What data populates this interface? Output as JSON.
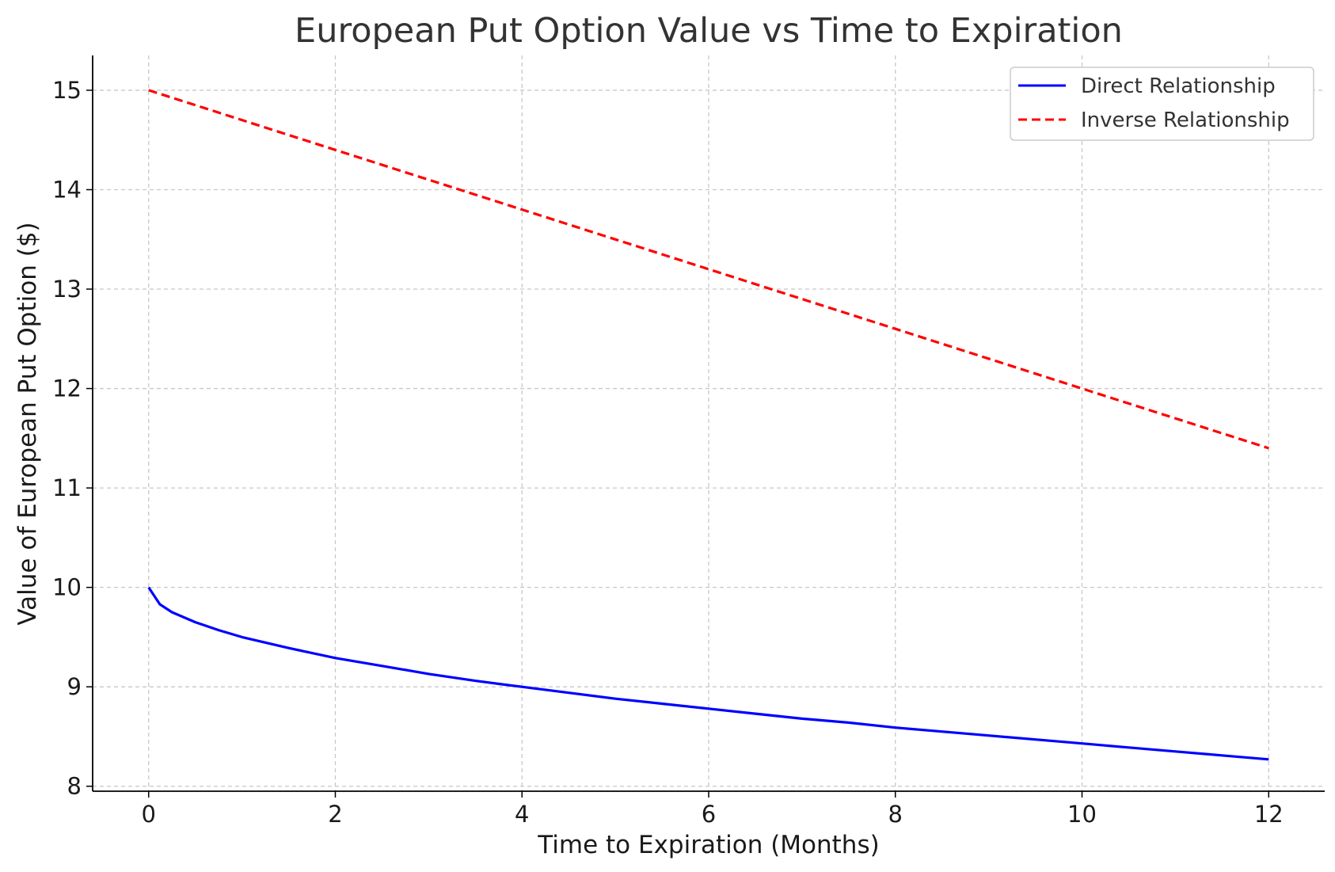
{
  "chart_data": {
    "type": "line",
    "title": "European Put Option Value vs Time to Expiration",
    "xlabel": "Time to Expiration (Months)",
    "ylabel": "Value of European Put Option ($)",
    "xlim": [
      -0.6,
      12.6
    ],
    "ylim": [
      7.95,
      15.35
    ],
    "xticks": [
      0,
      2,
      4,
      6,
      8,
      10,
      12
    ],
    "yticks": [
      8,
      9,
      10,
      11,
      12,
      13,
      14,
      15
    ],
    "grid": true,
    "legend_position": "top-right",
    "series": [
      {
        "name": "Direct Relationship",
        "color": "#0000ff",
        "style": "solid",
        "x": [
          0,
          0.12,
          0.25,
          0.5,
          0.75,
          1,
          1.5,
          2,
          2.5,
          3,
          3.5,
          4,
          4.5,
          5,
          5.5,
          6,
          6.5,
          7,
          7.5,
          8,
          8.5,
          9,
          9.5,
          10,
          10.5,
          11,
          11.5,
          12
        ],
        "values": [
          10,
          9.83,
          9.75,
          9.65,
          9.57,
          9.5,
          9.39,
          9.29,
          9.21,
          9.13,
          9.06,
          9.0,
          8.94,
          8.88,
          8.83,
          8.78,
          8.73,
          8.68,
          8.64,
          8.59,
          8.55,
          8.51,
          8.47,
          8.43,
          8.39,
          8.35,
          8.31,
          8.27
        ]
      },
      {
        "name": "Inverse Relationship",
        "color": "#ff0000",
        "style": "dashed",
        "x": [
          0,
          2,
          4,
          6,
          8,
          10,
          12
        ],
        "values": [
          15,
          14.4,
          13.8,
          13.2,
          12.6,
          12.0,
          11.4
        ]
      }
    ]
  }
}
